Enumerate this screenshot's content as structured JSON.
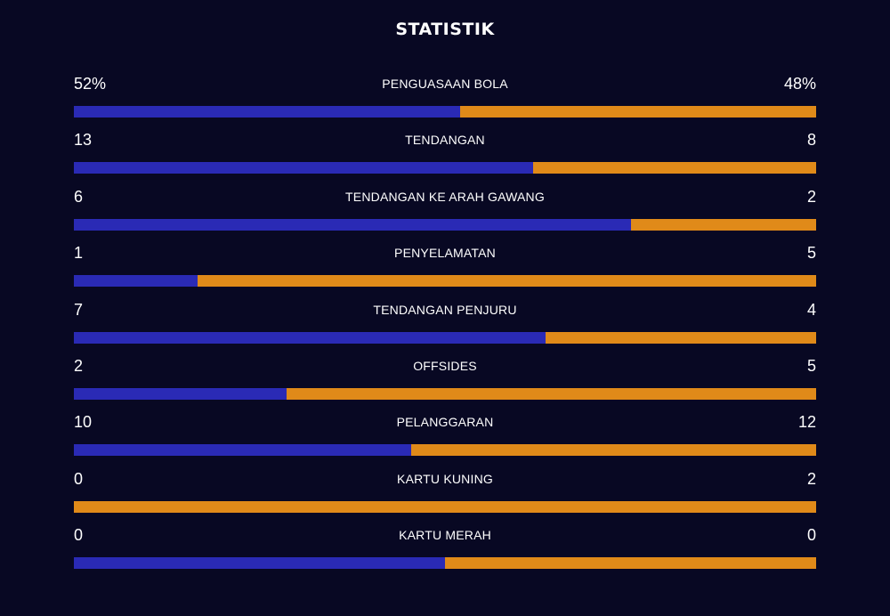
{
  "title": "STATISTIK",
  "colors": {
    "background": "#080823",
    "home_bar": "#2a2ab5",
    "away_bar": "#e08a19",
    "text": "#ffffff"
  },
  "stats": [
    {
      "label": "PENGUASAAN BOLA",
      "home": "52%",
      "away": "48%",
      "home_share": 0.52
    },
    {
      "label": "TENDANGAN",
      "home": "13",
      "away": "8",
      "home_share": 0.619
    },
    {
      "label": "TENDANGAN KE ARAH GAWANG",
      "home": "6",
      "away": "2",
      "home_share": 0.75
    },
    {
      "label": "PENYELAMATAN",
      "home": "1",
      "away": "5",
      "home_share": 0.167
    },
    {
      "label": "TENDANGAN PENJURU",
      "home": "7",
      "away": "4",
      "home_share": 0.636
    },
    {
      "label": "OFFSIDES",
      "home": "2",
      "away": "5",
      "home_share": 0.286
    },
    {
      "label": "PELANGGARAN",
      "home": "10",
      "away": "12",
      "home_share": 0.455
    },
    {
      "label": "KARTU KUNING",
      "home": "0",
      "away": "2",
      "home_share": 0.0
    },
    {
      "label": "KARTU MERAH",
      "home": "0",
      "away": "0",
      "home_share": 0.5
    }
  ]
}
